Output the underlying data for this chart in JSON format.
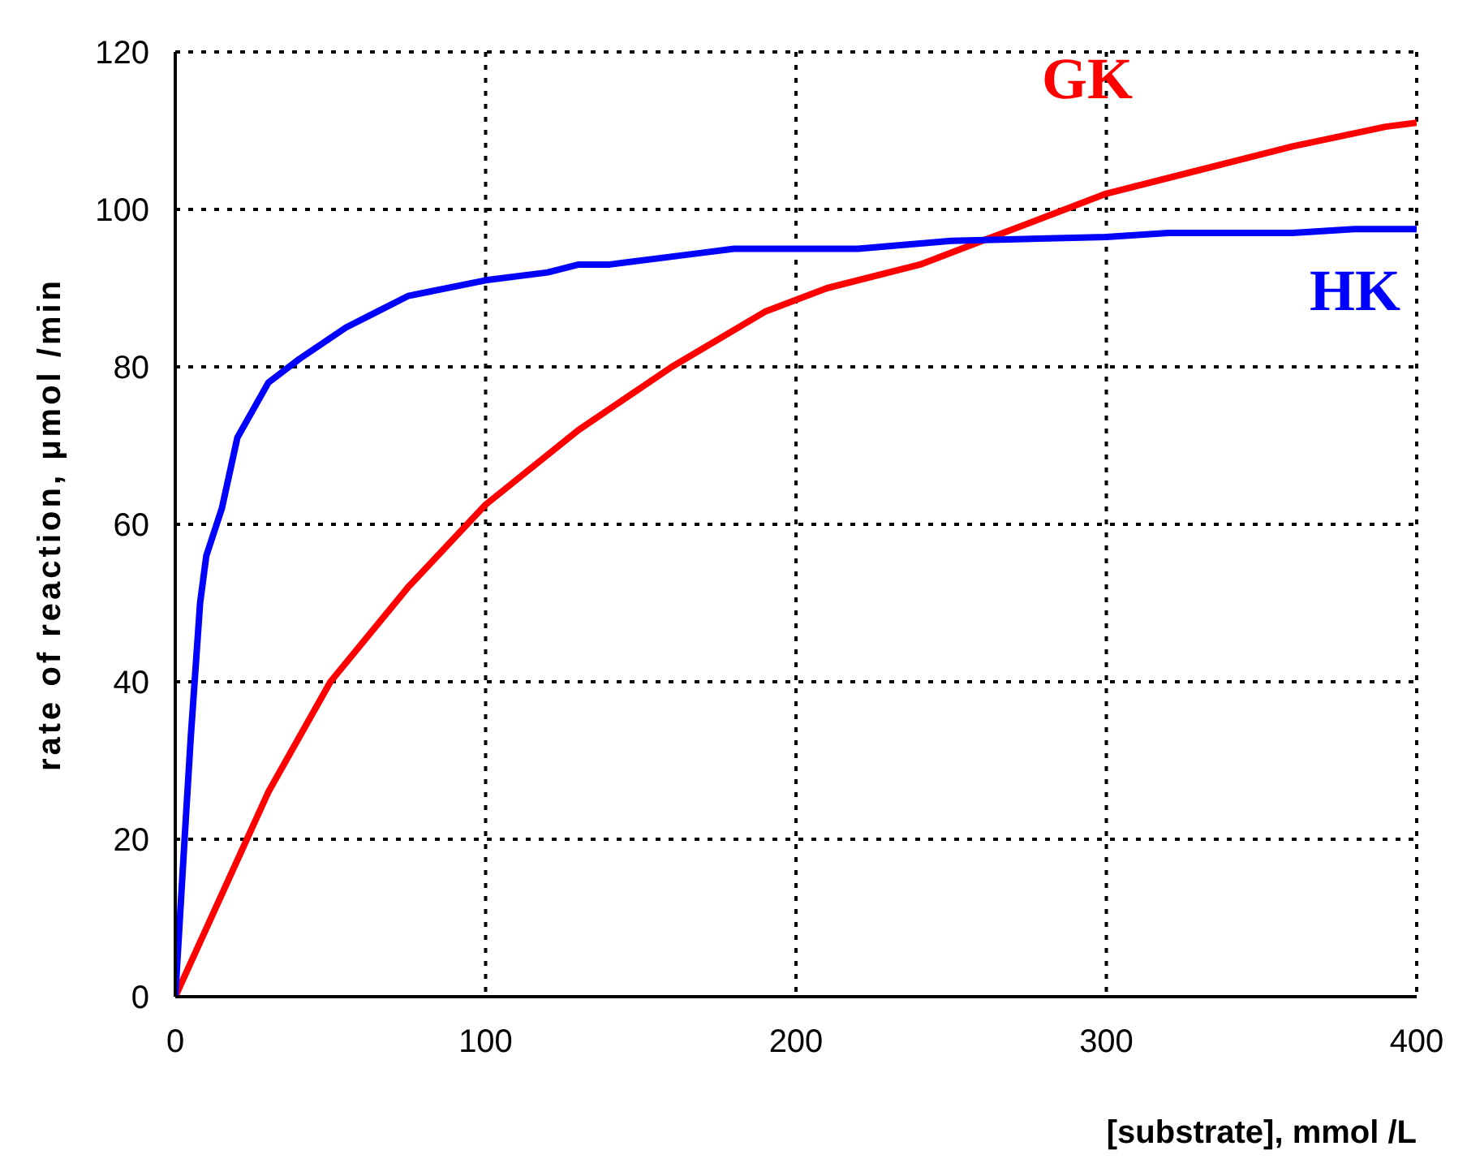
{
  "chart_data": {
    "type": "line",
    "xlabel": "[substrate], mmol /L",
    "ylabel": "rate of reaction, μmol /min",
    "xlim": [
      0,
      400
    ],
    "xticks": [
      0,
      100,
      200,
      300,
      400
    ],
    "ylim": [
      0,
      120
    ],
    "yticks": [
      0,
      20,
      40,
      60,
      80,
      100,
      120
    ],
    "grid": true,
    "legend": false,
    "marker": "none",
    "line_style": "solid",
    "series": [
      {
        "name": "GK",
        "color": "#ff0000",
        "x": [
          0,
          30,
          50,
          75,
          100,
          130,
          160,
          190,
          210,
          240,
          260,
          280,
          300,
          330,
          360,
          390,
          400
        ],
        "values": [
          0,
          26,
          40,
          52,
          62.5,
          72,
          80,
          87,
          90,
          93,
          96,
          99,
          102,
          105,
          108,
          110.5,
          111
        ]
      },
      {
        "name": "HK",
        "color": "#0000ff",
        "x": [
          0,
          3,
          5,
          8,
          10,
          15,
          20,
          30,
          40,
          55,
          65,
          75,
          100,
          120,
          130,
          140,
          170,
          180,
          200,
          220,
          250,
          300,
          320,
          360,
          380,
          400
        ],
        "values": [
          0,
          20,
          33,
          50,
          56,
          62,
          71,
          78,
          81,
          85,
          87,
          89,
          91,
          92,
          93,
          93,
          94.5,
          95,
          95,
          95,
          96,
          96.5,
          97,
          97,
          97.5,
          97.5
        ]
      }
    ]
  }
}
